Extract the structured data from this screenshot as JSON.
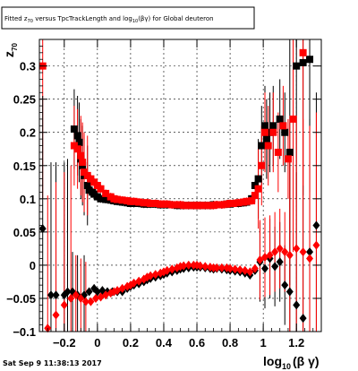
{
  "chart_data": {
    "type": "scatter",
    "title": "Fitted z_{70} versus TpcTrackLength and log_{10}(βγ) for Global deuteron",
    "title_parts": {
      "a": "Fitted z",
      "a_sub": "70",
      "b": " versus TpcTrackLength and log",
      "b_sub": "10",
      "c": "(βγ) for Global deuteron"
    },
    "xlabel": "log_{10}(βγ)",
    "xlabel_parts": {
      "main": "log",
      "sub": "10",
      "rest": "(β γ)"
    },
    "ylabel": "z_{70}",
    "ylabel_parts": {
      "main": "z",
      "sub": "70"
    },
    "xlim": [
      -0.35,
      1.35
    ],
    "ylim": [
      -0.1,
      0.34
    ],
    "x_ticks": [
      -0.2,
      0,
      0.2,
      0.4,
      0.6,
      0.8,
      1,
      1.2
    ],
    "x_tick_labels": [
      "−0.2",
      "0",
      "0.2",
      "0.4",
      "0.6",
      "0.8",
      "1",
      "1.2"
    ],
    "y_ticks": [
      -0.1,
      -0.05,
      0,
      0.05,
      0.1,
      0.15,
      0.2,
      0.25,
      0.3
    ],
    "y_tick_labels": [
      "−0.1",
      "−0.05",
      "0",
      "0.05",
      "0.1",
      "0.15",
      "0.2",
      "0.25",
      "0.3"
    ],
    "grid": true,
    "timestamp": "Sat Sep  9 11:38:13 2017",
    "colors": {
      "black": "#000000",
      "red": "#ff0000"
    },
    "series": [
      {
        "color": "#000000",
        "marker": "square",
        "points": [
          [
            -0.14,
            0.205
          ],
          [
            -0.12,
            0.195
          ],
          [
            -0.11,
            0.185
          ],
          [
            -0.1,
            0.16
          ],
          [
            -0.09,
            0.15
          ],
          [
            -0.08,
            0.135
          ],
          [
            -0.06,
            0.12
          ],
          [
            -0.05,
            0.113
          ],
          [
            -0.03,
            0.11
          ],
          [
            -0.02,
            0.107
          ],
          [
            0.0,
            0.103
          ],
          [
            0.02,
            0.1
          ],
          [
            0.05,
            0.099
          ],
          [
            0.08,
            0.098
          ],
          [
            0.1,
            0.097
          ],
          [
            0.12,
            0.096
          ],
          [
            0.15,
            0.095
          ],
          [
            0.18,
            0.094
          ],
          [
            0.2,
            0.093
          ],
          [
            0.22,
            0.093
          ],
          [
            0.25,
            0.093
          ],
          [
            0.28,
            0.092
          ],
          [
            0.3,
            0.092
          ],
          [
            0.32,
            0.092
          ],
          [
            0.35,
            0.092
          ],
          [
            0.38,
            0.091
          ],
          [
            0.4,
            0.091
          ],
          [
            0.42,
            0.091
          ],
          [
            0.45,
            0.091
          ],
          [
            0.48,
            0.09
          ],
          [
            0.5,
            0.09
          ],
          [
            0.52,
            0.09
          ],
          [
            0.55,
            0.09
          ],
          [
            0.58,
            0.09
          ],
          [
            0.6,
            0.09
          ],
          [
            0.62,
            0.09
          ],
          [
            0.65,
            0.09
          ],
          [
            0.68,
            0.09
          ],
          [
            0.7,
            0.091
          ],
          [
            0.72,
            0.091
          ],
          [
            0.75,
            0.091
          ],
          [
            0.78,
            0.092
          ],
          [
            0.8,
            0.092
          ],
          [
            0.82,
            0.093
          ],
          [
            0.85,
            0.093
          ],
          [
            0.88,
            0.094
          ],
          [
            0.9,
            0.095
          ],
          [
            0.93,
            0.1
          ],
          [
            0.95,
            0.12
          ],
          [
            0.97,
            0.13
          ],
          [
            0.99,
            0.18
          ],
          [
            1.01,
            0.21
          ],
          [
            1.02,
            0.19
          ],
          [
            1.04,
            0.2
          ],
          [
            1.06,
            0.21
          ],
          [
            1.1,
            0.22
          ],
          [
            1.13,
            0.2
          ],
          [
            1.16,
            0.17
          ],
          [
            1.2,
            0.3
          ],
          [
            1.24,
            0.305
          ],
          [
            1.28,
            0.31
          ]
        ]
      },
      {
        "color": "#ff0000",
        "marker": "square",
        "points": [
          [
            -0.33,
            0.3
          ],
          [
            -0.14,
            0.18
          ],
          [
            -0.12,
            0.175
          ],
          [
            -0.1,
            0.165
          ],
          [
            -0.09,
            0.155
          ],
          [
            -0.08,
            0.14
          ],
          [
            -0.06,
            0.135
          ],
          [
            -0.04,
            0.13
          ],
          [
            -0.02,
            0.125
          ],
          [
            0.0,
            0.12
          ],
          [
            0.02,
            0.115
          ],
          [
            0.05,
            0.108
          ],
          [
            0.08,
            0.103
          ],
          [
            0.1,
            0.1
          ],
          [
            0.12,
            0.099
          ],
          [
            0.15,
            0.098
          ],
          [
            0.18,
            0.097
          ],
          [
            0.2,
            0.096
          ],
          [
            0.22,
            0.096
          ],
          [
            0.25,
            0.095
          ],
          [
            0.28,
            0.094
          ],
          [
            0.3,
            0.094
          ],
          [
            0.32,
            0.093
          ],
          [
            0.35,
            0.093
          ],
          [
            0.38,
            0.092
          ],
          [
            0.4,
            0.092
          ],
          [
            0.42,
            0.092
          ],
          [
            0.45,
            0.091
          ],
          [
            0.48,
            0.091
          ],
          [
            0.5,
            0.091
          ],
          [
            0.52,
            0.09
          ],
          [
            0.55,
            0.09
          ],
          [
            0.58,
            0.09
          ],
          [
            0.6,
            0.09
          ],
          [
            0.62,
            0.09
          ],
          [
            0.65,
            0.09
          ],
          [
            0.68,
            0.09
          ],
          [
            0.7,
            0.09
          ],
          [
            0.72,
            0.091
          ],
          [
            0.75,
            0.091
          ],
          [
            0.78,
            0.092
          ],
          [
            0.8,
            0.093
          ],
          [
            0.82,
            0.093
          ],
          [
            0.85,
            0.094
          ],
          [
            0.88,
            0.095
          ],
          [
            0.9,
            0.096
          ],
          [
            0.93,
            0.097
          ],
          [
            0.95,
            0.105
          ],
          [
            0.97,
            0.115
          ],
          [
            0.99,
            0.15
          ],
          [
            1.01,
            0.2
          ],
          [
            1.03,
            0.18
          ],
          [
            1.06,
            0.2
          ],
          [
            1.09,
            0.17
          ],
          [
            1.12,
            0.21
          ],
          [
            1.15,
            0.16
          ],
          [
            1.18,
            0.22
          ],
          [
            1.24,
            0.32
          ]
        ]
      },
      {
        "color": "#000000",
        "marker": "diamond",
        "points": [
          [
            -0.33,
            0.055
          ],
          [
            -0.28,
            -0.045
          ],
          [
            -0.25,
            -0.045
          ],
          [
            -0.2,
            -0.045
          ],
          [
            -0.18,
            -0.04
          ],
          [
            -0.15,
            -0.04
          ],
          [
            -0.12,
            -0.045
          ],
          [
            -0.08,
            -0.045
          ],
          [
            -0.05,
            -0.04
          ],
          [
            -0.02,
            -0.035
          ],
          [
            0.0,
            -0.04
          ],
          [
            0.03,
            -0.038
          ],
          [
            0.06,
            -0.04
          ],
          [
            0.09,
            -0.04
          ],
          [
            0.12,
            -0.04
          ],
          [
            0.15,
            -0.04
          ],
          [
            0.18,
            -0.035
          ],
          [
            0.2,
            -0.032
          ],
          [
            0.22,
            -0.03
          ],
          [
            0.25,
            -0.028
          ],
          [
            0.28,
            -0.025
          ],
          [
            0.3,
            -0.022
          ],
          [
            0.32,
            -0.02
          ],
          [
            0.35,
            -0.018
          ],
          [
            0.38,
            -0.016
          ],
          [
            0.4,
            -0.014
          ],
          [
            0.42,
            -0.012
          ],
          [
            0.45,
            -0.01
          ],
          [
            0.48,
            -0.008
          ],
          [
            0.5,
            -0.006
          ],
          [
            0.52,
            -0.005
          ],
          [
            0.55,
            -0.004
          ],
          [
            0.58,
            -0.003
          ],
          [
            0.6,
            -0.003
          ],
          [
            0.62,
            -0.003
          ],
          [
            0.65,
            -0.004
          ],
          [
            0.68,
            -0.005
          ],
          [
            0.7,
            -0.006
          ],
          [
            0.72,
            -0.005
          ],
          [
            0.75,
            -0.006
          ],
          [
            0.78,
            -0.007
          ],
          [
            0.8,
            -0.008
          ],
          [
            0.83,
            -0.009
          ],
          [
            0.86,
            -0.01
          ],
          [
            0.89,
            -0.012
          ],
          [
            0.92,
            -0.015
          ],
          [
            0.95,
            -0.008
          ],
          [
            0.98,
            0.005
          ],
          [
            1.01,
            -0.005
          ],
          [
            1.04,
            0.01
          ],
          [
            1.07,
            -0.002
          ],
          [
            1.1,
            0.005
          ],
          [
            1.13,
            -0.03
          ],
          [
            1.16,
            -0.04
          ],
          [
            1.2,
            -0.06
          ],
          [
            1.24,
            -0.08
          ],
          [
            1.28,
            0.02
          ],
          [
            1.32,
            0.06
          ]
        ]
      },
      {
        "color": "#ff0000",
        "marker": "diamond",
        "points": [
          [
            -0.3,
            -0.095
          ],
          [
            -0.25,
            -0.075
          ],
          [
            -0.2,
            -0.06
          ],
          [
            -0.16,
            -0.05
          ],
          [
            -0.13,
            -0.045
          ],
          [
            -0.1,
            -0.05
          ],
          [
            -0.07,
            -0.055
          ],
          [
            -0.04,
            -0.055
          ],
          [
            -0.01,
            -0.05
          ],
          [
            0.02,
            -0.048
          ],
          [
            0.05,
            -0.045
          ],
          [
            0.08,
            -0.042
          ],
          [
            0.1,
            -0.04
          ],
          [
            0.12,
            -0.038
          ],
          [
            0.15,
            -0.035
          ],
          [
            0.18,
            -0.032
          ],
          [
            0.2,
            -0.03
          ],
          [
            0.22,
            -0.027
          ],
          [
            0.25,
            -0.024
          ],
          [
            0.28,
            -0.021
          ],
          [
            0.3,
            -0.018
          ],
          [
            0.32,
            -0.016
          ],
          [
            0.35,
            -0.014
          ],
          [
            0.38,
            -0.012
          ],
          [
            0.4,
            -0.01
          ],
          [
            0.42,
            -0.008
          ],
          [
            0.45,
            -0.006
          ],
          [
            0.48,
            -0.004
          ],
          [
            0.5,
            -0.002
          ],
          [
            0.52,
            -0.001
          ],
          [
            0.55,
            0.0
          ],
          [
            0.58,
            0.0
          ],
          [
            0.6,
            0.0
          ],
          [
            0.62,
            -0.001
          ],
          [
            0.65,
            -0.002
          ],
          [
            0.68,
            -0.003
          ],
          [
            0.7,
            -0.004
          ],
          [
            0.72,
            -0.004
          ],
          [
            0.75,
            -0.004
          ],
          [
            0.78,
            -0.004
          ],
          [
            0.8,
            -0.005
          ],
          [
            0.83,
            -0.006
          ],
          [
            0.86,
            -0.007
          ],
          [
            0.89,
            -0.008
          ],
          [
            0.92,
            -0.01
          ],
          [
            0.95,
            -0.005
          ],
          [
            0.98,
            0.008
          ],
          [
            1.01,
            0.012
          ],
          [
            1.04,
            0.015
          ],
          [
            1.07,
            0.02
          ],
          [
            1.1,
            0.025
          ],
          [
            1.13,
            0.02
          ],
          [
            1.16,
            0.015
          ],
          [
            1.2,
            0.025
          ],
          [
            1.24,
            0.02
          ],
          [
            1.28,
            0.01
          ],
          [
            1.32,
            0.03
          ]
        ]
      }
    ]
  }
}
